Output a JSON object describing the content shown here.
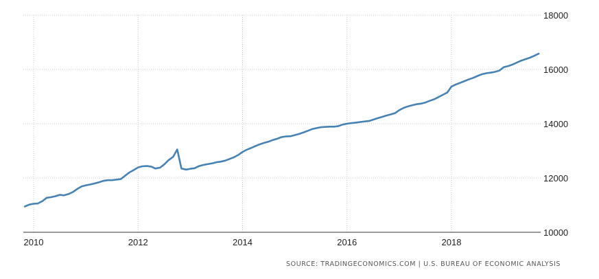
{
  "source": "SOURCE: TRADINGECONOMICS.COM | U.S. BUREAU OF ECONOMIC ANALYSIS",
  "colors": {
    "line": "#4682b4",
    "grid": "#c8c8c8",
    "axis": "#333333",
    "text": "#222222"
  },
  "chart_data": {
    "type": "line",
    "title": "",
    "xlabel": "",
    "ylabel": "",
    "xlim": [
      2009.83,
      2019.67
    ],
    "ylim": [
      10000,
      18000
    ],
    "x_ticks": [
      2010,
      2012,
      2014,
      2016,
      2018
    ],
    "x_tick_labels": [
      "2010",
      "2012",
      "2014",
      "2016",
      "2018"
    ],
    "y_ticks": [
      10000,
      12000,
      14000,
      16000,
      18000
    ],
    "y_tick_labels": [
      "10000",
      "12000",
      "14000",
      "16000",
      "18000"
    ],
    "grid": true,
    "legend": "none",
    "series": [
      {
        "x": [
          2009.83,
          2009.92,
          2010.0,
          2010.08,
          2010.17,
          2010.25,
          2010.33,
          2010.42,
          2010.5,
          2010.58,
          2010.67,
          2010.75,
          2010.83,
          2010.92,
          2011.0,
          2011.08,
          2011.17,
          2011.25,
          2011.33,
          2011.42,
          2011.5,
          2011.58,
          2011.67,
          2011.75,
          2011.83,
          2011.92,
          2012.0,
          2012.08,
          2012.17,
          2012.25,
          2012.33,
          2012.42,
          2012.5,
          2012.58,
          2012.67,
          2012.75,
          2012.83,
          2012.92,
          2013.0,
          2013.08,
          2013.17,
          2013.25,
          2013.33,
          2013.42,
          2013.5,
          2013.58,
          2013.67,
          2013.75,
          2013.83,
          2013.92,
          2014.0,
          2014.08,
          2014.17,
          2014.25,
          2014.33,
          2014.42,
          2014.5,
          2014.58,
          2014.67,
          2014.75,
          2014.83,
          2014.92,
          2015.0,
          2015.08,
          2015.17,
          2015.25,
          2015.33,
          2015.42,
          2015.5,
          2015.58,
          2015.67,
          2015.75,
          2015.83,
          2015.92,
          2016.0,
          2016.08,
          2016.17,
          2016.25,
          2016.33,
          2016.42,
          2016.5,
          2016.58,
          2016.67,
          2016.75,
          2016.83,
          2016.92,
          2017.0,
          2017.08,
          2017.17,
          2017.25,
          2017.33,
          2017.42,
          2017.5,
          2017.58,
          2017.67,
          2017.75,
          2017.83,
          2017.92,
          2018.0,
          2018.08,
          2018.17,
          2018.25,
          2018.33,
          2018.42,
          2018.5,
          2018.58,
          2018.67,
          2018.75,
          2018.83,
          2018.92,
          2019.0,
          2019.08,
          2019.17,
          2019.25,
          2019.33,
          2019.42,
          2019.5,
          2019.58,
          2019.67
        ],
        "y": [
          10950,
          11020,
          11050,
          11060,
          11150,
          11270,
          11290,
          11330,
          11380,
          11360,
          11410,
          11480,
          11590,
          11690,
          11730,
          11760,
          11800,
          11840,
          11890,
          11920,
          11920,
          11940,
          11960,
          12080,
          12200,
          12300,
          12390,
          12430,
          12440,
          12420,
          12350,
          12380,
          12500,
          12650,
          12780,
          13050,
          12350,
          12310,
          12340,
          12360,
          12440,
          12480,
          12510,
          12540,
          12580,
          12600,
          12640,
          12700,
          12760,
          12850,
          12960,
          13040,
          13110,
          13180,
          13240,
          13300,
          13340,
          13400,
          13450,
          13510,
          13530,
          13540,
          13580,
          13620,
          13680,
          13740,
          13800,
          13840,
          13870,
          13880,
          13890,
          13890,
          13910,
          13970,
          14000,
          14020,
          14040,
          14060,
          14080,
          14100,
          14150,
          14200,
          14250,
          14300,
          14340,
          14390,
          14500,
          14580,
          14640,
          14680,
          14720,
          14740,
          14780,
          14840,
          14900,
          14980,
          15060,
          15150,
          15370,
          15440,
          15510,
          15570,
          15630,
          15690,
          15760,
          15820,
          15860,
          15880,
          15910,
          15960,
          16080,
          16120,
          16180,
          16250,
          16320,
          16380,
          16430,
          16500,
          16580
        ]
      }
    ]
  }
}
